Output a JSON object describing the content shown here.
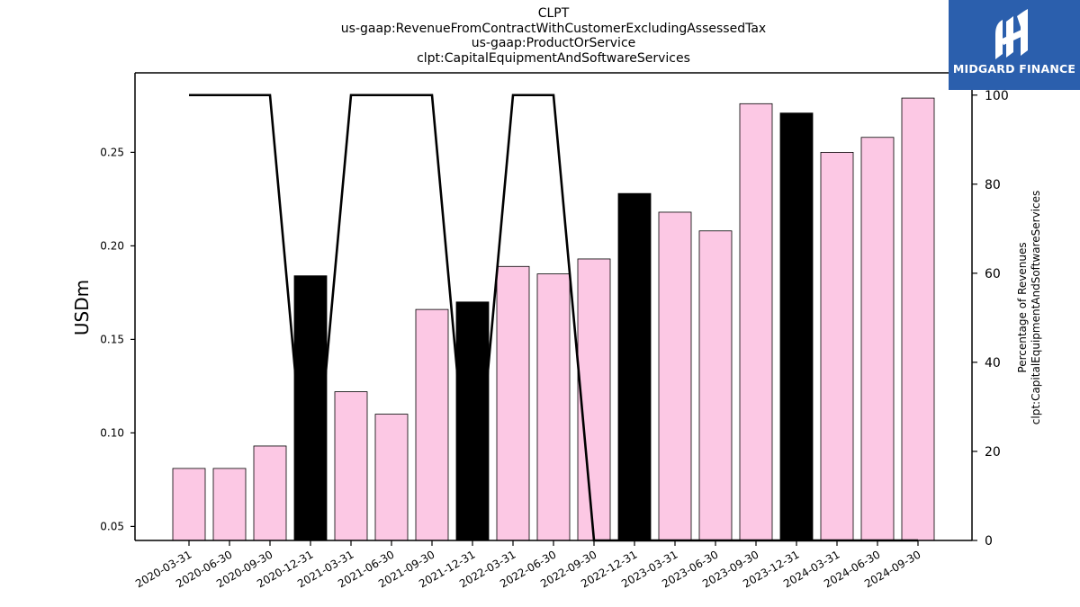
{
  "chart_data": {
    "type": "bar",
    "title_lines": [
      "CLPT",
      "us-gaap:RevenueFromContractWithCustomerExcludingAssessedTax",
      "us-gaap:ProductOrService",
      "clpt:CapitalEquipmentAndSoftwareServices"
    ],
    "ylabel": "USDm",
    "ylabel_right": [
      "Percentage of Revenues",
      "clpt:CapitalEquipmentAndSoftwareServices"
    ],
    "categories": [
      "2020-03-31",
      "2020-06-30",
      "2020-09-30",
      "2020-12-31",
      "2021-03-31",
      "2021-06-30",
      "2021-09-30",
      "2021-12-31",
      "2022-03-31",
      "2022-06-30",
      "2022-09-30",
      "2022-12-31",
      "2023-03-31",
      "2023-06-30",
      "2023-09-30",
      "2023-12-31",
      "2024-03-31",
      "2024-06-30",
      "2024-09-30"
    ],
    "values": [
      0.081,
      0.081,
      0.093,
      0.184,
      0.122,
      0.11,
      0.166,
      0.17,
      0.189,
      0.185,
      0.193,
      0.228,
      0.218,
      0.208,
      0.276,
      0.271,
      0.25,
      0.258,
      0.279
    ],
    "highlight": [
      false,
      false,
      false,
      true,
      false,
      false,
      false,
      true,
      false,
      false,
      false,
      true,
      false,
      false,
      false,
      true,
      false,
      false,
      false
    ],
    "line_series": {
      "values": [
        100,
        100,
        100,
        0,
        100,
        100,
        100,
        0,
        100,
        100,
        0,
        0,
        0,
        0,
        0,
        0,
        0,
        0,
        0
      ],
      "axis": "right"
    },
    "ylim": [
      0.0425,
      0.2925
    ],
    "yticks": [
      0.05,
      0.1,
      0.15,
      0.2,
      0.25
    ],
    "ylim_right": [
      0,
      105
    ],
    "yticks_right": [
      0,
      20,
      40,
      60,
      80,
      100
    ],
    "colors": {
      "bar": "#fcc8e4",
      "bar_highlight": "#000000",
      "line": "#000000",
      "edge": "#000000"
    },
    "grid": false
  },
  "logo": {
    "text": "MIDGARD FINANCE",
    "bg": "#2b5fad"
  }
}
